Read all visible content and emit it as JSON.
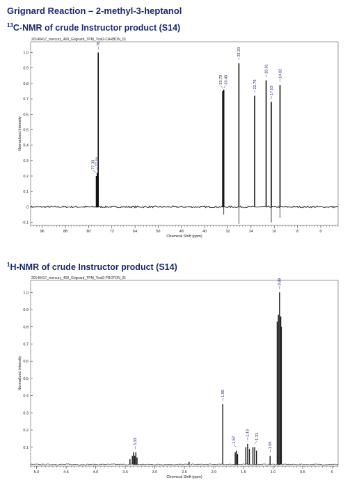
{
  "page": {
    "title": "Grignard Reaction – 2-methyl-3-heptanol"
  },
  "chart_data": [
    {
      "type": "line",
      "title_sup": "13",
      "title_rest": "C-NMR of crude Instructor product (S14)",
      "file_label": "20140417_mercury_400_Grignard_TPM_Tiral2-CARBON_01",
      "xlabel": "Chemical Shift (ppm)",
      "ylabel": "Normalized Intensity",
      "xlim": [
        100,
        -6
      ],
      "ylim": [
        -0.12,
        1.07
      ],
      "xticks": [
        96,
        88,
        80,
        72,
        64,
        56,
        48,
        40,
        32,
        24,
        16,
        8,
        0
      ],
      "yticks": [
        -0.1,
        0,
        0.1,
        0.2,
        0.3,
        0.4,
        0.5,
        0.6,
        0.7,
        0.8,
        0.9,
        1.0
      ],
      "ytick_labels": [
        "-0.1",
        "0",
        "0.1",
        "0.2",
        "0.3",
        "0.4",
        "0.5",
        "0.6",
        "0.7",
        "0.8",
        "0.9",
        "1.0"
      ],
      "peaks": [
        {
          "x": 77.33,
          "y": 0.2
        },
        {
          "x": 77.01,
          "y": 0.22
        },
        {
          "x": 76.69,
          "y": 1.0
        },
        {
          "x": 33.79,
          "y": 0.75
        },
        {
          "x": 33.4,
          "y": 0.76
        },
        {
          "x": 28.2,
          "y": 0.93
        },
        {
          "x": 22.76,
          "y": 0.72
        },
        {
          "x": 18.81,
          "y": 0.82
        },
        {
          "x": 17.03,
          "y": 0.68
        },
        {
          "x": 14.02,
          "y": 0.79
        }
      ],
      "negative_peaks": [
        {
          "x": 33.4,
          "y": -0.05
        },
        {
          "x": 28.2,
          "y": -0.11
        },
        {
          "x": 17.03,
          "y": -0.1
        },
        {
          "x": 14.02,
          "y": -0.07
        }
      ],
      "peak_labels": [
        {
          "x": 77.33,
          "text": "77.33",
          "anchor_y": 0.22
        },
        {
          "x": 77.01,
          "text": "77.01",
          "anchor_y": 0.24
        },
        {
          "x": 76.69,
          "text": "76.",
          "anchor_y": 1.02
        },
        {
          "x": 33.79,
          "text": "33.79",
          "anchor_y": 0.77
        },
        {
          "x": 33.4,
          "text": "33.40",
          "anchor_y": 0.77
        },
        {
          "x": 28.2,
          "text": "28.20",
          "anchor_y": 0.95
        },
        {
          "x": 22.76,
          "text": "22.76",
          "anchor_y": 0.74
        },
        {
          "x": 18.81,
          "text": "18.81",
          "anchor_y": 0.84
        },
        {
          "x": 17.03,
          "text": "17.03",
          "anchor_y": 0.7
        },
        {
          "x": 14.02,
          "text": "14.02",
          "anchor_y": 0.81
        }
      ]
    },
    {
      "type": "line",
      "title_sup": "1",
      "title_rest": "H-NMR of crude Instructor product (S14)",
      "file_label": "20140417_mercury_400_Grignard_TPM_Tiral2-PROTON_01",
      "xlabel": "Chemical Shift (ppm)",
      "ylabel": "Normalized Intensity",
      "xlim": [
        5.1,
        -0.1
      ],
      "ylim": [
        -0.01,
        1.07
      ],
      "xticks": [
        5.0,
        4.5,
        4.0,
        3.5,
        3.0,
        2.5,
        2.0,
        1.5,
        1.0,
        0.5,
        0
      ],
      "xtick_labels": [
        "5.0",
        "4.5",
        "4.0",
        "3.5",
        "3.0",
        "2.5",
        "2.0",
        "1.5",
        "1.0",
        "0.5",
        "0"
      ],
      "yticks": [
        0.1,
        0.2,
        0.3,
        0.4,
        0.5,
        0.6,
        0.7,
        0.8,
        0.9,
        1.0
      ],
      "ytick_labels": [
        "0.1",
        "0.2",
        "0.3",
        "0.4",
        "0.5",
        "0.6",
        "0.7",
        "0.8",
        "0.9",
        "1.0"
      ],
      "peaks": [
        {
          "x": 3.38,
          "y": 0.05
        },
        {
          "x": 3.36,
          "y": 0.07
        },
        {
          "x": 3.34,
          "y": 0.05
        },
        {
          "x": 3.32,
          "y": 0.07
        },
        {
          "x": 3.3,
          "y": 0.04
        },
        {
          "x": 3.42,
          "y": 0.03
        },
        {
          "x": 2.42,
          "y": 0.015
        },
        {
          "x": 1.85,
          "y": 0.35
        },
        {
          "x": 1.64,
          "y": 0.07
        },
        {
          "x": 1.62,
          "y": 0.08
        },
        {
          "x": 1.6,
          "y": 0.06
        },
        {
          "x": 1.46,
          "y": 0.1
        },
        {
          "x": 1.43,
          "y": 0.12
        },
        {
          "x": 1.4,
          "y": 0.09
        },
        {
          "x": 1.34,
          "y": 0.1
        },
        {
          "x": 1.31,
          "y": 0.1
        },
        {
          "x": 1.28,
          "y": 0.08
        },
        {
          "x": 1.05,
          "y": 0.05
        },
        {
          "x": 0.93,
          "y": 0.83
        },
        {
          "x": 0.91,
          "y": 0.87
        },
        {
          "x": 0.89,
          "y": 1.0
        },
        {
          "x": 0.87,
          "y": 0.86
        },
        {
          "x": 0.86,
          "y": 0.8
        }
      ],
      "peak_labels": [
        {
          "x": 3.33,
          "text": "3.33",
          "anchor_y": 0.09
        },
        {
          "x": 1.85,
          "text": "1.85",
          "anchor_y": 0.37
        },
        {
          "x": 1.62,
          "text": "1.62",
          "anchor_y": 0.1
        },
        {
          "x": 1.43,
          "text": "1.43",
          "anchor_y": 0.14
        },
        {
          "x": 1.31,
          "text": "1.31",
          "anchor_y": 0.12
        },
        {
          "x": 1.05,
          "text": "1.05",
          "anchor_y": 0.07
        },
        {
          "x": 0.89,
          "text": "0.89",
          "anchor_y": 1.02
        }
      ]
    }
  ]
}
